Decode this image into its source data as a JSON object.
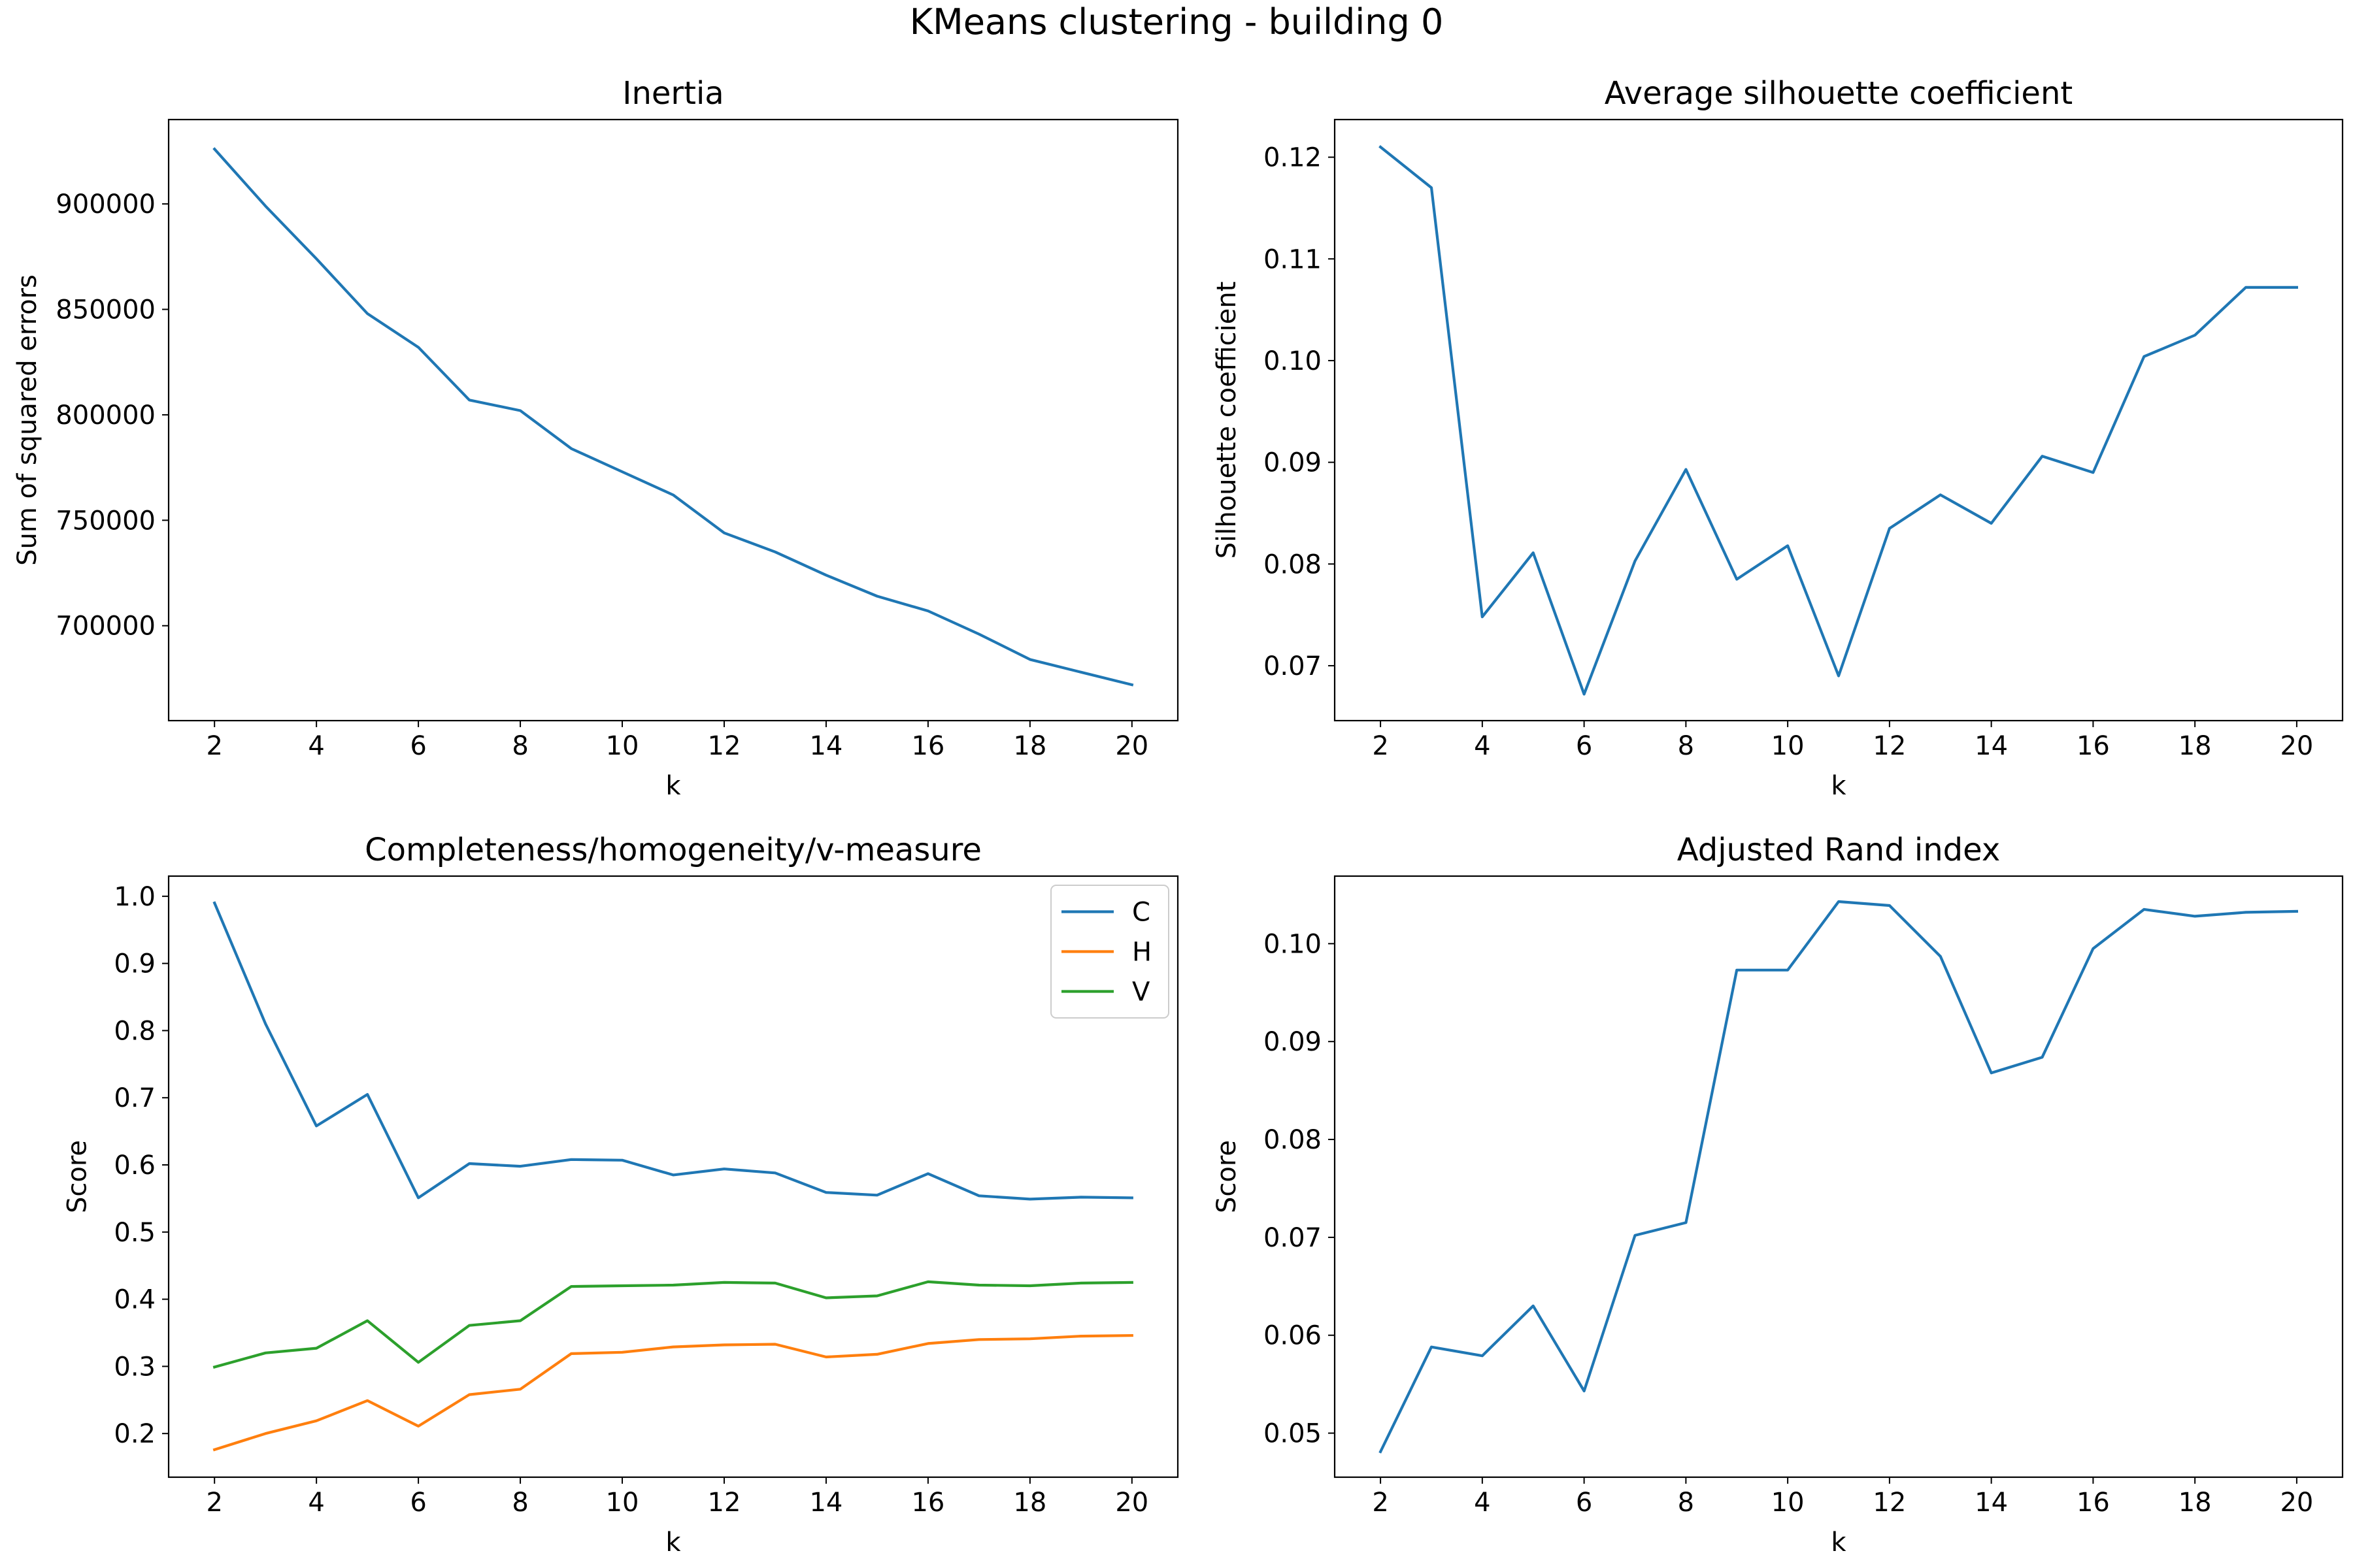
{
  "figure": {
    "suptitle": "KMeans clustering - building 0"
  },
  "chart_data": [
    {
      "type": "line",
      "title": "Inertia",
      "xlabel": "k",
      "ylabel": "Sum of squared errors",
      "x": [
        2,
        3,
        4,
        5,
        6,
        7,
        8,
        9,
        10,
        11,
        12,
        13,
        14,
        15,
        16,
        17,
        18,
        19,
        20
      ],
      "xlim": [
        1.1,
        20.9
      ],
      "ylim": [
        655000,
        940000
      ],
      "xticks": [
        2,
        4,
        6,
        8,
        10,
        12,
        14,
        16,
        18,
        20
      ],
      "xtick_labels": [
        "2",
        "4",
        "6",
        "8",
        "10",
        "12",
        "14",
        "16",
        "18",
        "20"
      ],
      "yticks": [
        700000,
        750000,
        800000,
        850000,
        900000
      ],
      "ytick_labels": [
        "700000",
        "750000",
        "800000",
        "850000",
        "900000"
      ],
      "series": [
        {
          "color": "#1f77b4",
          "values": [
            926000,
            899000,
            874000,
            848000,
            832000,
            807000,
            802000,
            784000,
            773000,
            762000,
            744000,
            735000,
            724000,
            714000,
            707000,
            696000,
            684000,
            678000,
            672000
          ]
        }
      ]
    },
    {
      "type": "line",
      "title": "Average silhouette coefficient",
      "xlabel": "k",
      "ylabel": "Silhouette coefficient",
      "x": [
        2,
        3,
        4,
        5,
        6,
        7,
        8,
        9,
        10,
        11,
        12,
        13,
        14,
        15,
        16,
        17,
        18,
        19,
        20
      ],
      "xlim": [
        1.1,
        20.9
      ],
      "ylim": [
        0.0646,
        0.1237
      ],
      "xticks": [
        2,
        4,
        6,
        8,
        10,
        12,
        14,
        16,
        18,
        20
      ],
      "xtick_labels": [
        "2",
        "4",
        "6",
        "8",
        "10",
        "12",
        "14",
        "16",
        "18",
        "20"
      ],
      "yticks": [
        0.07,
        0.08,
        0.09,
        0.1,
        0.11,
        0.12
      ],
      "ytick_labels": [
        "0.07",
        "0.08",
        "0.09",
        "0.10",
        "0.11",
        "0.12"
      ],
      "series": [
        {
          "color": "#1f77b4",
          "values": [
            0.121,
            0.117,
            0.0748,
            0.0811,
            0.0672,
            0.0803,
            0.0893,
            0.0785,
            0.0818,
            0.069,
            0.0835,
            0.0868,
            0.084,
            0.0906,
            0.089,
            0.1004,
            0.1025,
            0.1072,
            0.1072
          ]
        }
      ]
    },
    {
      "type": "line",
      "title": "Completeness/homogeneity/v-measure",
      "xlabel": "k",
      "ylabel": "Score",
      "x": [
        2,
        3,
        4,
        5,
        6,
        7,
        8,
        9,
        10,
        11,
        12,
        13,
        14,
        15,
        16,
        17,
        18,
        19,
        20
      ],
      "xlim": [
        1.1,
        20.9
      ],
      "ylim": [
        0.135,
        1.03
      ],
      "xticks": [
        2,
        4,
        6,
        8,
        10,
        12,
        14,
        16,
        18,
        20
      ],
      "xtick_labels": [
        "2",
        "4",
        "6",
        "8",
        "10",
        "12",
        "14",
        "16",
        "18",
        "20"
      ],
      "yticks": [
        0.2,
        0.3,
        0.4,
        0.5,
        0.6,
        0.7,
        0.8,
        0.9,
        1.0
      ],
      "ytick_labels": [
        "0.2",
        "0.3",
        "0.4",
        "0.5",
        "0.6",
        "0.7",
        "0.8",
        "0.9",
        "1.0"
      ],
      "legend": "top-right",
      "series": [
        {
          "name": "C",
          "color": "#1f77b4",
          "values": [
            0.99,
            0.81,
            0.658,
            0.705,
            0.551,
            0.602,
            0.598,
            0.608,
            0.607,
            0.585,
            0.594,
            0.588,
            0.559,
            0.555,
            0.587,
            0.554,
            0.549,
            0.552,
            0.551
          ]
        },
        {
          "name": "H",
          "color": "#ff7f0e",
          "values": [
            0.176,
            0.2,
            0.219,
            0.249,
            0.211,
            0.258,
            0.266,
            0.319,
            0.321,
            0.329,
            0.332,
            0.333,
            0.314,
            0.318,
            0.334,
            0.34,
            0.341,
            0.345,
            0.346
          ]
        },
        {
          "name": "V",
          "color": "#2ca02c",
          "values": [
            0.299,
            0.32,
            0.327,
            0.368,
            0.306,
            0.361,
            0.368,
            0.419,
            0.42,
            0.421,
            0.425,
            0.424,
            0.402,
            0.405,
            0.426,
            0.421,
            0.42,
            0.424,
            0.425
          ]
        }
      ]
    },
    {
      "type": "line",
      "title": "Adjusted Rand index",
      "xlabel": "k",
      "ylabel": "Score",
      "x": [
        2,
        3,
        4,
        5,
        6,
        7,
        8,
        9,
        10,
        11,
        12,
        13,
        14,
        15,
        16,
        17,
        18,
        19,
        20
      ],
      "xlim": [
        1.1,
        20.9
      ],
      "ylim": [
        0.0455,
        0.1069
      ],
      "xticks": [
        2,
        4,
        6,
        8,
        10,
        12,
        14,
        16,
        18,
        20
      ],
      "xtick_labels": [
        "2",
        "4",
        "6",
        "8",
        "10",
        "12",
        "14",
        "16",
        "18",
        "20"
      ],
      "yticks": [
        0.05,
        0.06,
        0.07,
        0.08,
        0.09,
        0.1
      ],
      "ytick_labels": [
        "0.05",
        "0.06",
        "0.07",
        "0.08",
        "0.09",
        "0.10"
      ],
      "series": [
        {
          "color": "#1f77b4",
          "values": [
            0.0481,
            0.0588,
            0.0579,
            0.063,
            0.0543,
            0.0702,
            0.0715,
            0.0973,
            0.0973,
            0.1043,
            0.1039,
            0.0987,
            0.0868,
            0.0884,
            0.0995,
            0.1035,
            0.1028,
            0.1032,
            0.1033
          ]
        }
      ]
    }
  ]
}
